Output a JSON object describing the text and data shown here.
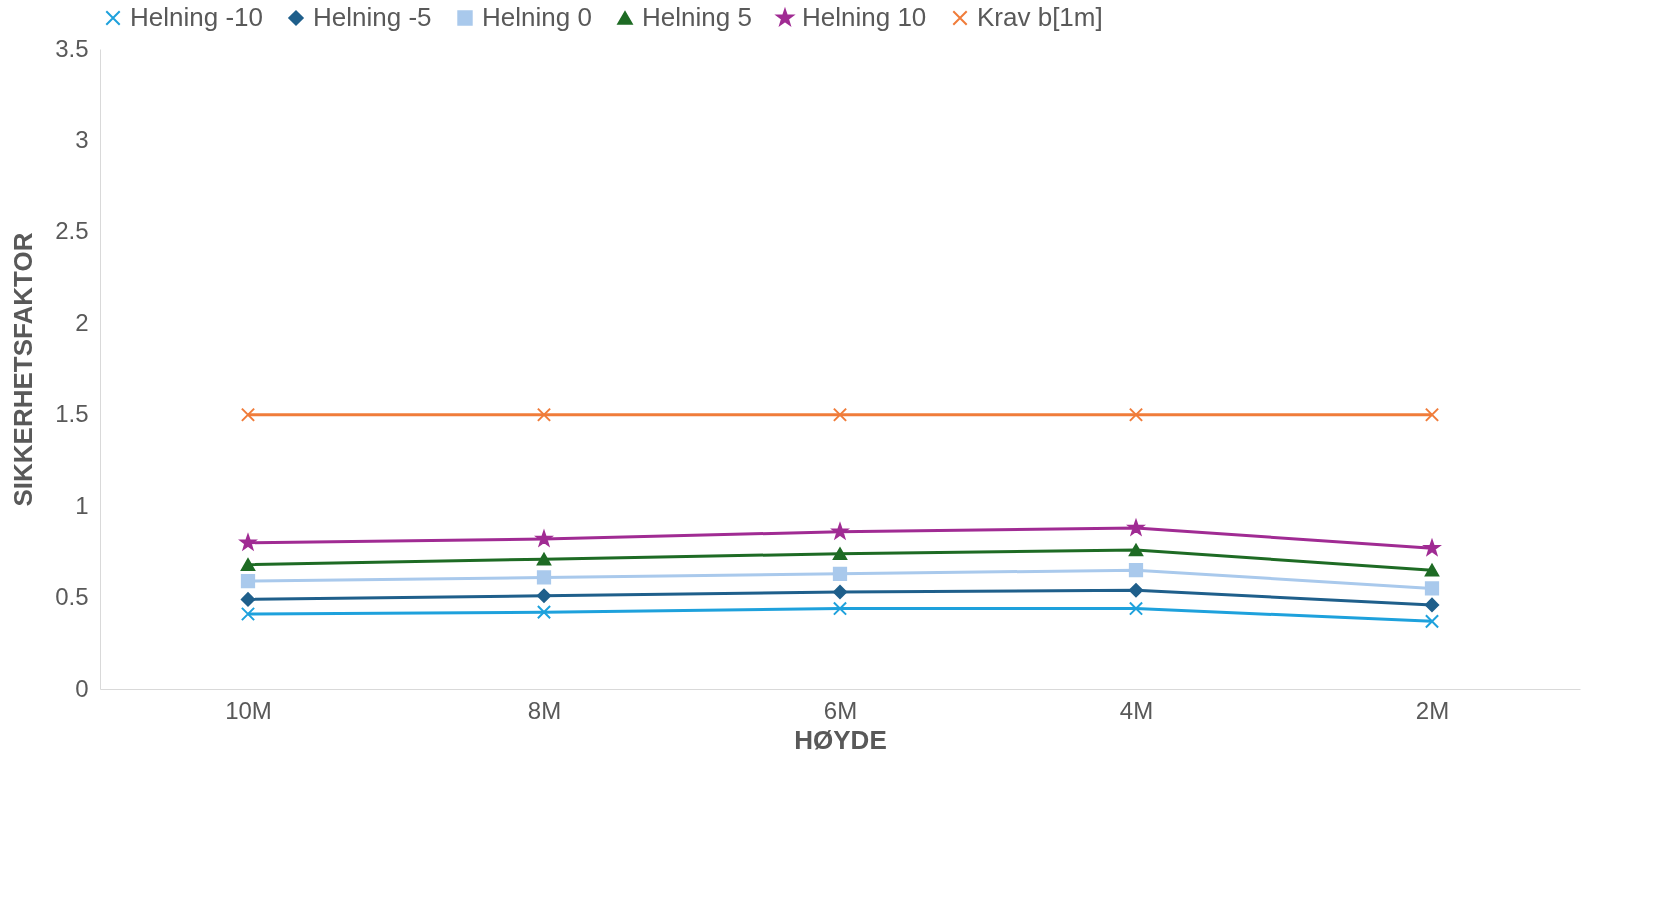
{
  "chart_data": {
    "type": "line",
    "xlabel": "HØYDE",
    "ylabel": "SIKKERHETSFAKTOR",
    "categories": [
      "10M",
      "8M",
      "6M",
      "4M",
      "2M"
    ],
    "series": [
      {
        "name": "Helning -10",
        "color": "#1ea1dc",
        "marker": "cross",
        "values": [
          0.41,
          0.42,
          0.44,
          0.44,
          0.37
        ]
      },
      {
        "name": "Helning -5",
        "color": "#1f5f8b",
        "marker": "diamond",
        "values": [
          0.49,
          0.51,
          0.53,
          0.54,
          0.46
        ]
      },
      {
        "name": "Helning 0",
        "color": "#a9c9ec",
        "marker": "square",
        "values": [
          0.59,
          0.61,
          0.63,
          0.65,
          0.55
        ]
      },
      {
        "name": "Helning 5",
        "color": "#1e6b24",
        "marker": "triangle",
        "values": [
          0.68,
          0.71,
          0.74,
          0.76,
          0.65
        ]
      },
      {
        "name": "Helning 10",
        "color": "#a02b93",
        "marker": "star",
        "values": [
          0.8,
          0.82,
          0.86,
          0.88,
          0.77
        ]
      },
      {
        "name": "Krav b[1m]",
        "color": "#f07c3a",
        "marker": "cross",
        "values": [
          1.5,
          1.5,
          1.5,
          1.5,
          1.5
        ]
      }
    ],
    "ylim": [
      0,
      3.5
    ],
    "yticks": [
      0,
      0.5,
      1,
      1.5,
      2,
      2.5,
      3,
      3.5
    ],
    "grid": false,
    "legend": "top",
    "line_style": "solid"
  }
}
